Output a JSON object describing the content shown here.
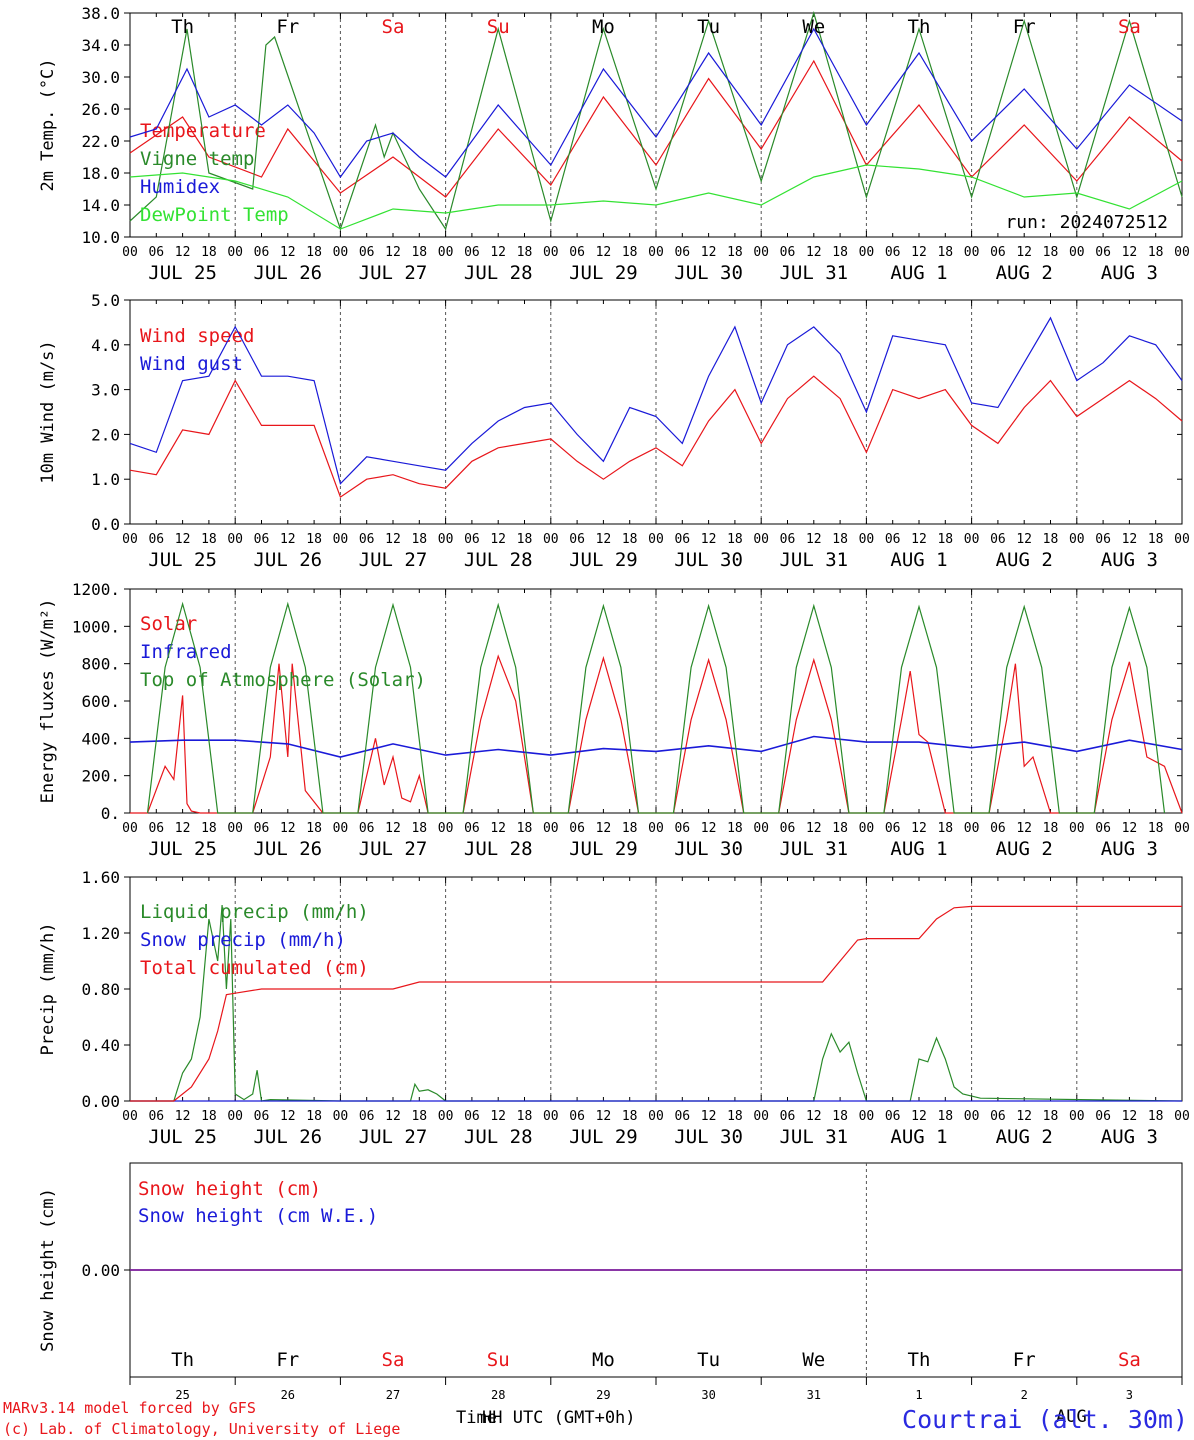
{
  "colors": {
    "red": "#e8161b",
    "green": "#2a8a2a",
    "blue": "#1a1ad8",
    "lime": "#33e233",
    "black": "#000000",
    "purple": "#7a1a9a"
  },
  "x_axis": {
    "hour_labels": [
      "00",
      "06",
      "12",
      "18"
    ],
    "end_label": "00",
    "dates": [
      "JUL 25",
      "JUL 26",
      "JUL 27",
      "JUL 28",
      "JUL 29",
      "JUL 30",
      "JUL 31",
      "AUG  1",
      "AUG  2",
      "AUG  3"
    ],
    "weekdays": [
      {
        "label": "Th",
        "weekend": false
      },
      {
        "label": "Fr",
        "weekend": false
      },
      {
        "label": "Sa",
        "weekend": true
      },
      {
        "label": "Su",
        "weekend": true
      },
      {
        "label": "Mo",
        "weekend": false
      },
      {
        "label": "Tu",
        "weekend": false
      },
      {
        "label": "We",
        "weekend": false
      },
      {
        "label": "Th",
        "weekend": false
      },
      {
        "label": "Fr",
        "weekend": false
      },
      {
        "label": "Sa",
        "weekend": true
      }
    ],
    "day_numbers": [
      "25",
      "26",
      "27",
      "28",
      "29",
      "30",
      "31",
      "1",
      "2",
      "3"
    ]
  },
  "chart_data": [
    {
      "type": "line",
      "ylabel": "2m Temp. (°C)",
      "ylim": [
        10,
        38
      ],
      "yticks": [
        "10.0",
        "14.0",
        "18.0",
        "22.0",
        "26.0",
        "30.0",
        "34.0",
        "38.0"
      ],
      "ytick_values": [
        10,
        14,
        18,
        22,
        26,
        30,
        34,
        38
      ],
      "annotation": "run: 2024072512",
      "series": [
        {
          "name": "Temperature",
          "color": "red",
          "x": [
            0,
            12,
            18,
            30,
            36,
            48,
            60,
            72,
            84,
            96,
            108,
            120,
            132,
            144,
            156,
            168,
            180,
            192,
            204,
            216,
            228,
            240
          ],
          "values": [
            20.5,
            25,
            20,
            17.5,
            23.5,
            15.5,
            20,
            15,
            23.5,
            16.5,
            27.5,
            19,
            29.8,
            21,
            32,
            19,
            26.5,
            17.5,
            24,
            17,
            25,
            19.5
          ]
        },
        {
          "name": "Vigne temp",
          "color": "green",
          "x": [
            0,
            6,
            13,
            18,
            28,
            31,
            33,
            48,
            56,
            58,
            60,
            66,
            72,
            84,
            96,
            108,
            120,
            132,
            144,
            156,
            168,
            180,
            192,
            204,
            216,
            228,
            240
          ],
          "values": [
            12,
            15,
            36,
            18,
            16,
            34,
            35,
            11,
            24,
            20,
            23,
            16,
            11,
            36,
            12,
            36,
            16,
            37,
            17,
            38,
            15,
            36,
            15,
            37,
            15,
            37,
            15
          ]
        },
        {
          "name": "Humidex",
          "color": "blue",
          "x": [
            0,
            6,
            13,
            18,
            24,
            30,
            36,
            42,
            48,
            54,
            60,
            66,
            72,
            84,
            96,
            108,
            120,
            132,
            144,
            156,
            168,
            180,
            192,
            204,
            216,
            228,
            240
          ],
          "values": [
            22.5,
            23.5,
            31,
            25,
            26.5,
            24,
            26.5,
            23,
            17.5,
            22,
            23,
            20,
            17.5,
            26.5,
            19,
            31,
            22.5,
            33,
            24,
            36,
            24,
            33,
            22,
            28.5,
            21,
            29,
            24.5
          ]
        },
        {
          "name": "DewPoint Temp",
          "color": "lime",
          "x": [
            0,
            12,
            24,
            36,
            48,
            60,
            72,
            84,
            96,
            108,
            120,
            132,
            144,
            156,
            168,
            180,
            192,
            204,
            216,
            228,
            240
          ],
          "values": [
            17.5,
            18,
            17,
            15,
            11,
            13.5,
            13,
            14,
            14,
            14.5,
            14,
            15.5,
            14,
            17.5,
            19,
            18.5,
            17.5,
            15,
            15.5,
            13.5,
            17
          ]
        }
      ]
    },
    {
      "type": "line",
      "ylabel": "10m Wind (m/s)",
      "ylim": [
        0,
        5
      ],
      "yticks": [
        "0.0",
        "1.0",
        "2.0",
        "3.0",
        "4.0",
        "5.0"
      ],
      "ytick_values": [
        0,
        1,
        2,
        3,
        4,
        5
      ],
      "series": [
        {
          "name": "Wind speed",
          "color": "red",
          "x": [
            0,
            6,
            12,
            18,
            24,
            30,
            36,
            42,
            48,
            54,
            60,
            66,
            72,
            78,
            84,
            90,
            96,
            102,
            108,
            114,
            120,
            126,
            132,
            138,
            144,
            150,
            156,
            162,
            168,
            174,
            180,
            186,
            192,
            198,
            204,
            210,
            216,
            222,
            228,
            234,
            240
          ],
          "values": [
            1.2,
            1.1,
            2.1,
            2,
            3.2,
            2.2,
            2.2,
            2.2,
            0.6,
            1,
            1.1,
            0.9,
            0.8,
            1.4,
            1.7,
            1.8,
            1.9,
            1.4,
            1.0,
            1.4,
            1.7,
            1.3,
            2.3,
            3.0,
            1.8,
            2.8,
            3.3,
            2.8,
            1.6,
            3.0,
            2.8,
            3.0,
            2.2,
            1.8,
            2.6,
            3.2,
            2.4,
            2.8,
            3.2,
            2.8,
            2.3
          ]
        },
        {
          "name": "Wind gust",
          "color": "blue",
          "x": [
            0,
            6,
            12,
            18,
            24,
            30,
            36,
            42,
            48,
            54,
            60,
            66,
            72,
            78,
            84,
            90,
            96,
            102,
            108,
            114,
            120,
            126,
            132,
            138,
            144,
            150,
            156,
            162,
            168,
            174,
            180,
            186,
            192,
            198,
            204,
            210,
            216,
            222,
            228,
            234,
            240
          ],
          "values": [
            1.8,
            1.6,
            3.2,
            3.3,
            4.4,
            3.3,
            3.3,
            3.2,
            0.9,
            1.5,
            1.4,
            1.3,
            1.2,
            1.8,
            2.3,
            2.6,
            2.7,
            2.0,
            1.4,
            2.6,
            2.4,
            1.8,
            3.3,
            4.4,
            2.7,
            4.0,
            4.4,
            3.8,
            2.5,
            4.2,
            4.1,
            4.0,
            2.7,
            2.6,
            3.6,
            4.6,
            3.2,
            3.6,
            4.2,
            4.0,
            3.2
          ]
        }
      ]
    },
    {
      "type": "line",
      "ylabel": "Energy fluxes (W/m²)",
      "ylim": [
        0,
        1200
      ],
      "yticks": [
        "0.",
        "200.",
        "400.",
        "600.",
        "800.",
        "1000.",
        "1200."
      ],
      "ytick_values": [
        0,
        200,
        400,
        600,
        800,
        1000,
        1200
      ],
      "series": [
        {
          "name": "Solar",
          "color": "red",
          "x": [
            0,
            4,
            8,
            10,
            12,
            13,
            14,
            16,
            20,
            28,
            32,
            34,
            36,
            37,
            40,
            44,
            52,
            56,
            58,
            60,
            62,
            64,
            66,
            68,
            72,
            76,
            80,
            84,
            88,
            92,
            96,
            100,
            104,
            108,
            112,
            116,
            120,
            124,
            128,
            132,
            136,
            140,
            144,
            148,
            152,
            156,
            160,
            164,
            168,
            172,
            176,
            178,
            180,
            182,
            186,
            192,
            196,
            200,
            202,
            204,
            206,
            210,
            216,
            220,
            224,
            228,
            232,
            236,
            240
          ],
          "values": [
            0,
            0,
            250,
            180,
            630,
            50,
            10,
            0,
            0,
            0,
            300,
            800,
            300,
            800,
            120,
            0,
            0,
            400,
            150,
            300,
            80,
            60,
            200,
            0,
            0,
            0,
            500,
            840,
            600,
            0,
            0,
            0,
            500,
            830,
            500,
            0,
            0,
            0,
            500,
            820,
            500,
            0,
            0,
            0,
            500,
            820,
            500,
            0,
            0,
            0,
            500,
            760,
            420,
            380,
            0,
            0,
            0,
            500,
            800,
            250,
            300,
            0,
            0,
            0,
            500,
            810,
            300,
            250,
            0
          ]
        },
        {
          "name": "Infrared",
          "color": "blue",
          "x": [
            0,
            12,
            24,
            36,
            48,
            60,
            72,
            84,
            96,
            108,
            120,
            132,
            144,
            156,
            168,
            180,
            192,
            204,
            216,
            228,
            240
          ],
          "values": [
            380,
            390,
            390,
            370,
            300,
            370,
            310,
            340,
            310,
            345,
            330,
            360,
            330,
            410,
            380,
            380,
            350,
            380,
            330,
            390,
            340
          ]
        },
        {
          "name": "Top of Atmosphere (Solar)",
          "color": "green",
          "x": [
            4,
            8,
            12,
            16,
            20,
            28,
            32,
            36,
            40,
            44,
            52,
            56,
            60,
            64,
            68,
            76,
            80,
            84,
            88,
            92,
            100,
            104,
            108,
            112,
            116,
            124,
            128,
            132,
            136,
            140,
            148,
            152,
            156,
            160,
            164,
            172,
            176,
            180,
            184,
            188,
            196,
            200,
            204,
            208,
            212,
            220,
            224,
            228,
            232,
            236
          ],
          "values": [
            0,
            780,
            1120,
            780,
            0,
            0,
            780,
            1120,
            780,
            0,
            0,
            780,
            1115,
            780,
            0,
            0,
            780,
            1115,
            780,
            0,
            0,
            780,
            1110,
            780,
            0,
            0,
            780,
            1110,
            780,
            0,
            0,
            780,
            1110,
            780,
            0,
            0,
            780,
            1105,
            780,
            0,
            0,
            780,
            1105,
            780,
            0,
            0,
            780,
            1100,
            780,
            0
          ]
        }
      ]
    },
    {
      "type": "line",
      "ylabel": "Precip (mm/h)",
      "ylim": [
        0,
        1.6
      ],
      "yticks": [
        "0.00",
        "0.40",
        "0.80",
        "1.20",
        "1.60"
      ],
      "ytick_values": [
        0,
        0.4,
        0.8,
        1.2,
        1.6
      ],
      "series": [
        {
          "name": "Liquid precip (mm/h)",
          "color": "green",
          "x": [
            0,
            10,
            12,
            14,
            16,
            18,
            20,
            21,
            22,
            23,
            24,
            26,
            28,
            29,
            30,
            32,
            48,
            64,
            65,
            66,
            68,
            70,
            72,
            156,
            158,
            160,
            162,
            164,
            166,
            168,
            178,
            180,
            182,
            184,
            186,
            188,
            190,
            194,
            240
          ],
          "values": [
            0,
            0,
            0.2,
            0.3,
            0.6,
            1.3,
            1.0,
            1.4,
            0.8,
            1.3,
            0.05,
            0.01,
            0.05,
            0.22,
            0.0,
            0.01,
            0,
            0,
            0.12,
            0.07,
            0.08,
            0.05,
            0,
            0,
            0.3,
            0.48,
            0.35,
            0.42,
            0.2,
            0,
            0,
            0.3,
            0.28,
            0.45,
            0.3,
            0.1,
            0.05,
            0.02,
            0
          ]
        },
        {
          "name": "Snow precip (mm/h)",
          "color": "blue",
          "x": [
            0,
            240
          ],
          "values": [
            0,
            0
          ]
        },
        {
          "name": "Total cumulated (cm)",
          "color": "red",
          "x": [
            0,
            10,
            14,
            18,
            20,
            22,
            24,
            30,
            36,
            48,
            60,
            66,
            72,
            96,
            120,
            144,
            158,
            162,
            166,
            168,
            180,
            184,
            188,
            192,
            240
          ],
          "values": [
            0,
            0,
            0.1,
            0.3,
            0.5,
            0.76,
            0.77,
            0.8,
            0.8,
            0.8,
            0.8,
            0.85,
            0.85,
            0.85,
            0.85,
            0.85,
            0.85,
            1.0,
            1.15,
            1.16,
            1.16,
            1.3,
            1.38,
            1.39,
            1.39
          ]
        }
      ]
    },
    {
      "type": "line",
      "ylabel": "Snow height (cm)",
      "ylim": [
        -1,
        1
      ],
      "yticks": [
        "0.00"
      ],
      "ytick_values": [
        0
      ],
      "series": [
        {
          "name": "Snow height (cm)",
          "color": "red",
          "x": [
            0,
            240
          ],
          "values": [
            0,
            0
          ]
        },
        {
          "name": "Snow height (cm W.E.)",
          "color": "blue",
          "x": [
            0,
            240
          ],
          "values": [
            0,
            0
          ]
        }
      ]
    }
  ],
  "footer": {
    "credit_1": "MARv3.14 model forced by GFS",
    "credit_2": "(c) Lab. of Climatology, University of Liege",
    "axis_title_1": "Time",
    "axis_title_2": "HH UTC (GMT+0h)",
    "overlap_label": "AUG",
    "station": "Courtrai (alt. 30m)"
  }
}
